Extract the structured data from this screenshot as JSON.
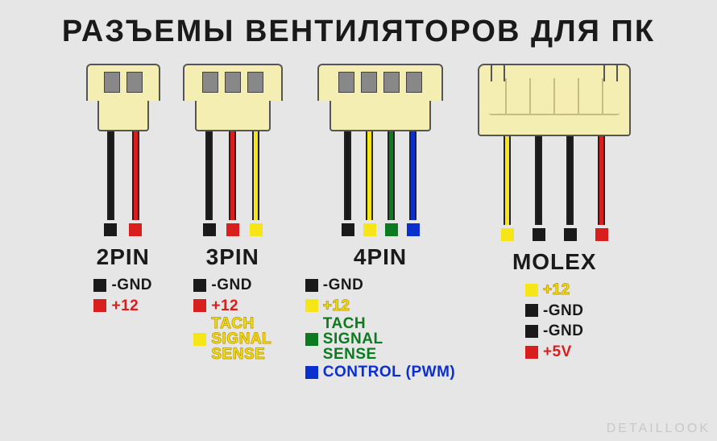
{
  "title": "РАЗЪЕМЫ ВЕНТИЛЯТОРОВ ДЛЯ ПК",
  "watermark": "DETAILLOOK",
  "colors": {
    "black": "#1a1a1a",
    "red": "#d91e1e",
    "yellow": "#f7e617",
    "green": "#0c7a1e",
    "blue": "#0a2fcf",
    "tach_outline": "#c9a300"
  },
  "connectors": [
    {
      "id": "2pin",
      "title": "2PIN",
      "pins": 2,
      "body_width": 92,
      "neck_width": 64,
      "wire_gap": 22,
      "wires": [
        "black",
        "red"
      ],
      "legend": [
        {
          "sq": "black",
          "text": "-GND",
          "color": "#1a1a1a"
        },
        {
          "sq": "red",
          "text": "+12",
          "color": "#d91e1e"
        }
      ]
    },
    {
      "id": "3pin",
      "title": "3PIN",
      "pins": 3,
      "body_width": 124,
      "neck_width": 94,
      "wire_gap": 20,
      "wires": [
        "black",
        "red",
        "yellow"
      ],
      "legend": [
        {
          "sq": "black",
          "text": "-GND",
          "color": "#1a1a1a"
        },
        {
          "sq": "red",
          "text": "+12",
          "color": "#d91e1e"
        },
        {
          "sq": "yellow",
          "multiline": [
            "TACH",
            "SIGNAL",
            "SENSE"
          ],
          "color": "#f7e617",
          "stroke": "#c9a300"
        }
      ]
    },
    {
      "id": "4pin",
      "title": "4PIN",
      "pins": 4,
      "body_width": 156,
      "neck_width": 126,
      "wire_gap": 18,
      "wires": [
        "black",
        "yellow",
        "green",
        "blue"
      ],
      "legend": [
        {
          "sq": "black",
          "text": "-GND",
          "color": "#1a1a1a"
        },
        {
          "sq": "yellow",
          "text": "+12",
          "color": "#f7e617",
          "stroke": "#c9a300"
        },
        {
          "sq": "green",
          "multiline": [
            "TACH",
            "SIGNAL",
            "SENSE"
          ],
          "color": "#0c7a1e"
        },
        {
          "sq": "blue",
          "text": "CONTROL (PWM)",
          "color": "#0a2fcf"
        }
      ]
    },
    {
      "id": "molex",
      "title": "MOLEX",
      "type": "molex",
      "wire_gap": 30,
      "wires": [
        "yellow",
        "black",
        "black",
        "red"
      ],
      "legend": [
        {
          "sq": "yellow",
          "text": "+12",
          "color": "#f7e617",
          "stroke": "#c9a300"
        },
        {
          "sq": "black",
          "text": "-GND",
          "color": "#1a1a1a"
        },
        {
          "sq": "black",
          "text": "-GND",
          "color": "#1a1a1a"
        },
        {
          "sq": "red",
          "text": "+5V",
          "color": "#d91e1e"
        }
      ]
    }
  ]
}
